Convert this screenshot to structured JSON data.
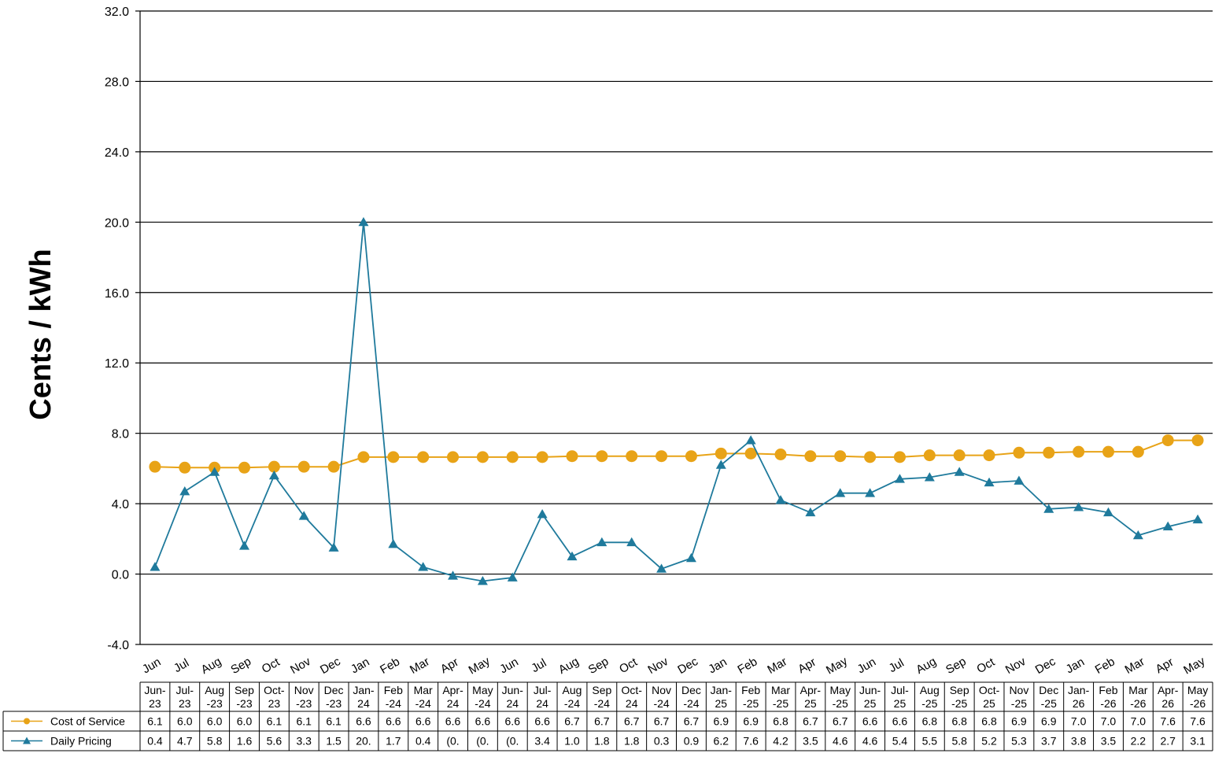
{
  "chart_data": {
    "type": "line",
    "ylabel": "Cents / kWh",
    "ylim": [
      -4,
      32
    ],
    "yticks": [
      "32.0",
      "28.0",
      "24.0",
      "20.0",
      "16.0",
      "12.0",
      "8.0",
      "4.0",
      "0.0",
      "-4.0"
    ],
    "grid": true,
    "categories": [
      "Jun",
      "Jul",
      "Aug",
      "Sep",
      "Oct",
      "Nov",
      "Dec",
      "Jan",
      "Feb",
      "Mar",
      "Apr",
      "May",
      "Jun",
      "Jul",
      "Aug",
      "Sep",
      "Oct",
      "Nov",
      "Dec",
      "Jan",
      "Feb",
      "Mar",
      "Apr",
      "May",
      "Jun",
      "Jul",
      "Aug",
      "Sep",
      "Oct",
      "Nov",
      "Dec",
      "Jan",
      "Feb",
      "Mar",
      "Apr",
      "May"
    ],
    "table_headers": [
      [
        "Jun-",
        "23"
      ],
      [
        "Jul-",
        "23"
      ],
      [
        "Aug",
        "-23"
      ],
      [
        "Sep",
        "-23"
      ],
      [
        "Oct-",
        "23"
      ],
      [
        "Nov",
        "-23"
      ],
      [
        "Dec",
        "-23"
      ],
      [
        "Jan-",
        "24"
      ],
      [
        "Feb",
        "-24"
      ],
      [
        "Mar",
        "-24"
      ],
      [
        "Apr-",
        "24"
      ],
      [
        "May",
        "-24"
      ],
      [
        "Jun-",
        "24"
      ],
      [
        "Jul-",
        "24"
      ],
      [
        "Aug",
        "-24"
      ],
      [
        "Sep",
        "-24"
      ],
      [
        "Oct-",
        "24"
      ],
      [
        "Nov",
        "-24"
      ],
      [
        "Dec",
        "-24"
      ],
      [
        "Jan-",
        "25"
      ],
      [
        "Feb",
        "-25"
      ],
      [
        "Mar",
        "-25"
      ],
      [
        "Apr-",
        "25"
      ],
      [
        "May",
        "-25"
      ],
      [
        "Jun-",
        "25"
      ],
      [
        "Jul-",
        "25"
      ],
      [
        "Aug",
        "-25"
      ],
      [
        "Sep",
        "-25"
      ],
      [
        "Oct-",
        "25"
      ],
      [
        "Nov",
        "-25"
      ],
      [
        "Dec",
        "-25"
      ],
      [
        "Jan-",
        "26"
      ],
      [
        "Feb",
        "-26"
      ],
      [
        "Mar",
        "-26"
      ],
      [
        "Apr-",
        "26"
      ],
      [
        "May",
        "-26"
      ]
    ],
    "series": [
      {
        "name": "Cost of Service",
        "color": "#E8A317",
        "marker": "circle",
        "values": [
          6.1,
          6.05,
          6.05,
          6.05,
          6.1,
          6.1,
          6.1,
          6.65,
          6.65,
          6.65,
          6.65,
          6.65,
          6.65,
          6.65,
          6.7,
          6.7,
          6.7,
          6.7,
          6.7,
          6.85,
          6.85,
          6.8,
          6.7,
          6.7,
          6.65,
          6.65,
          6.75,
          6.75,
          6.75,
          6.9,
          6.9,
          6.95,
          6.95,
          6.95,
          7.6,
          7.6
        ],
        "table_labels": [
          "6.1",
          "6.0",
          "6.0",
          "6.0",
          "6.1",
          "6.1",
          "6.1",
          "6.6",
          "6.6",
          "6.6",
          "6.6",
          "6.6",
          "6.6",
          "6.6",
          "6.7",
          "6.7",
          "6.7",
          "6.7",
          "6.7",
          "6.9",
          "6.9",
          "6.8",
          "6.7",
          "6.7",
          "6.6",
          "6.6",
          "6.8",
          "6.8",
          "6.8",
          "6.9",
          "6.9",
          "7.0",
          "7.0",
          "7.0",
          "7.6",
          "7.6"
        ]
      },
      {
        "name": "Daily Pricing",
        "color": "#1F7A9C",
        "marker": "triangle",
        "values": [
          0.4,
          4.7,
          5.8,
          1.6,
          5.6,
          3.3,
          1.5,
          20.0,
          1.7,
          0.4,
          -0.1,
          -0.4,
          -0.2,
          3.4,
          1.0,
          1.8,
          1.8,
          0.3,
          0.9,
          6.2,
          7.6,
          4.2,
          3.5,
          4.6,
          4.6,
          5.4,
          5.5,
          5.8,
          5.2,
          5.3,
          3.7,
          3.8,
          3.5,
          2.2,
          2.7,
          3.1
        ],
        "table_labels": [
          "0.4",
          "4.7",
          "5.8",
          "1.6",
          "5.6",
          "3.3",
          "1.5",
          "20.",
          "1.7",
          "0.4",
          "(0.",
          "(0.",
          "(0.",
          "3.4",
          "1.0",
          "1.8",
          "1.8",
          "0.3",
          "0.9",
          "6.2",
          "7.6",
          "4.2",
          "3.5",
          "4.6",
          "4.6",
          "5.4",
          "5.5",
          "5.8",
          "5.2",
          "5.3",
          "3.7",
          "3.8",
          "3.5",
          "2.2",
          "2.7",
          "3.1"
        ]
      }
    ]
  }
}
